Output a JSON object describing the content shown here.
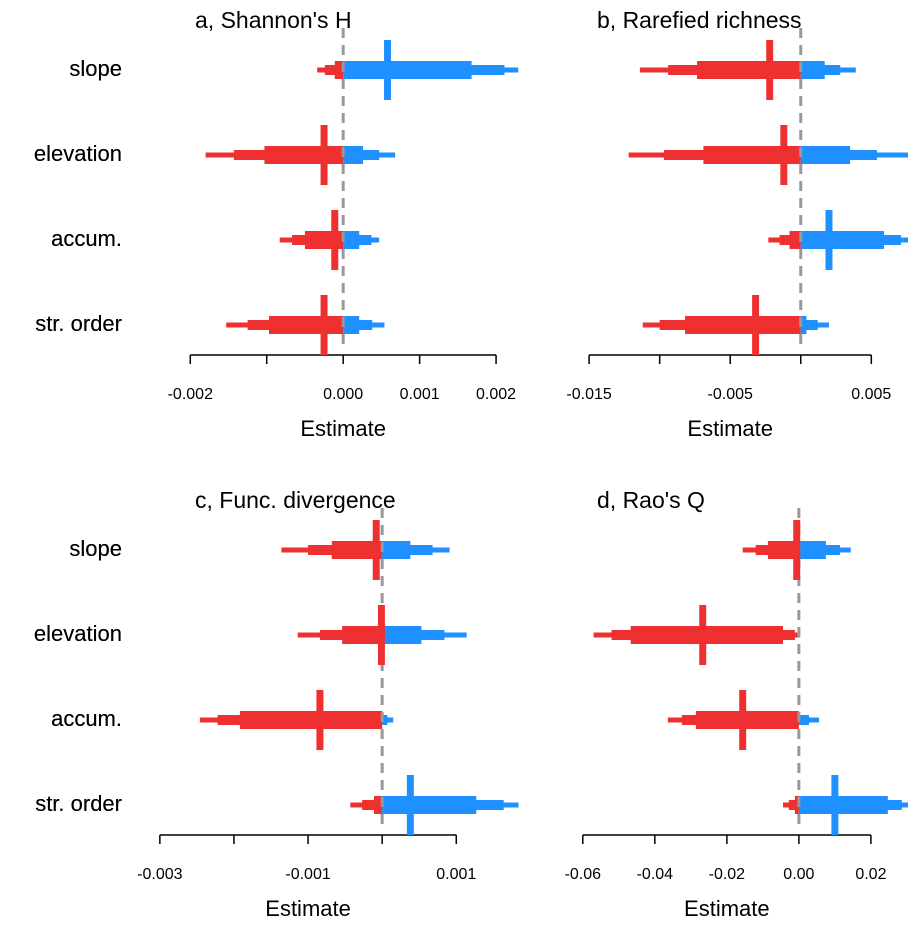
{
  "chart_data": [
    {
      "type": "interval",
      "title": "a, Shannon's H",
      "xlabel": "Estimate",
      "categories": [
        "slope",
        "elevation",
        "accum.",
        "str. order"
      ],
      "xlim": [
        -0.0022,
        0.0023
      ],
      "xticks": [
        -0.002,
        {
          "value": 0,
          "label": "0.000"
        },
        0.001,
        0.002
      ],
      "xticks_minor": [
        -0.001
      ],
      "refline": 0,
      "estimates": [
        0.00058,
        -0.00025,
        -0.00011,
        -0.00025
      ],
      "intervals": [
        {
          "lower": [
            -0.00034,
            -0.0018,
            -0.00083,
            -0.00153
          ],
          "upper": [
            0.00229,
            0.00068,
            0.00047,
            0.00054
          ]
        },
        {
          "lower": [
            -0.00024,
            -0.00143,
            -0.00067,
            -0.00125
          ],
          "upper": [
            0.00211,
            0.00047,
            0.00037,
            0.00038
          ]
        },
        {
          "lower": [
            -0.00011,
            -0.00103,
            -0.0005,
            -0.00097
          ],
          "upper": [
            0.00168,
            0.00026,
            0.00021,
            0.00021
          ]
        }
      ],
      "negative_color": "#ee3030",
      "positive_color": "#1e90ff",
      "refline_color": "#999999"
    },
    {
      "type": "interval",
      "title": "b, Rarefied richness",
      "xlabel": "Estimate",
      "categories": [
        "slope",
        "elevation",
        "accum.",
        "str. order"
      ],
      "xlim": [
        -0.016,
        0.0076
      ],
      "xticks": [
        -0.015,
        -0.005,
        0.005
      ],
      "xticks_minor": [
        -0.01,
        0
      ],
      "refline": 0,
      "estimates": [
        -0.0022,
        -0.0012,
        0.002,
        -0.0032
      ],
      "intervals": [
        {
          "lower": [
            -0.0114,
            -0.0122,
            -0.0023,
            -0.0112
          ],
          "upper": [
            0.0039,
            0.0076,
            0.0078,
            0.002
          ]
        },
        {
          "lower": [
            -0.0094,
            -0.0097,
            -0.0015,
            -0.01
          ],
          "upper": [
            0.0028,
            0.0054,
            0.0071,
            0.0012
          ]
        },
        {
          "lower": [
            -0.00735,
            -0.0069,
            -0.0008,
            -0.0082
          ],
          "upper": [
            0.0017,
            0.0035,
            0.0059,
            0.0004
          ]
        }
      ],
      "negative_color": "#ee3030",
      "positive_color": "#1e90ff",
      "refline_color": "#999999"
    },
    {
      "type": "interval",
      "title": "c, Func. divergence",
      "xlabel": "Estimate",
      "categories": [
        "slope",
        "elevation",
        "accum.",
        "str. order"
      ],
      "xlim": [
        -0.00316,
        0.00186
      ],
      "xticks": [
        -0.003,
        -0.001,
        0.001
      ],
      "xticks_minor": [
        -0.002,
        0
      ],
      "refline": 0,
      "estimates": [
        -8e-05,
        -1e-05,
        -0.00084,
        0.00038
      ],
      "intervals": [
        {
          "lower": [
            -0.00136,
            -0.00114,
            -0.00246,
            -0.00043
          ],
          "upper": [
            0.00091,
            0.00114,
            0.00015,
            0.00184
          ]
        },
        {
          "lower": [
            -0.001,
            -0.00084,
            -0.00222,
            -0.00027
          ],
          "upper": [
            0.00068,
            0.00084,
            7e-05,
            0.00164
          ]
        },
        {
          "lower": [
            -0.00068,
            -0.00054,
            -0.00192,
            -0.00011
          ],
          "upper": [
            0.00038,
            0.00053,
            0,
            0.00127
          ]
        }
      ],
      "negative_color": "#ee3030",
      "positive_color": "#1e90ff",
      "refline_color": "#999999"
    },
    {
      "type": "interval",
      "title": "d, Rao's Q",
      "xlabel": "Estimate",
      "categories": [
        "slope",
        "elevation",
        "accum.",
        "str. order"
      ],
      "xlim": [
        -0.063,
        0.0303
      ],
      "xticks": [
        -0.06,
        -0.04,
        -0.02,
        {
          "value": 0,
          "label": "0.00"
        },
        0.02
      ],
      "xticks_minor": [],
      "refline": 0,
      "estimates": [
        -0.0006,
        -0.0267,
        -0.0156,
        0.01
      ],
      "intervals": [
        {
          "lower": [
            -0.0156,
            -0.057,
            -0.0364,
            -0.0044
          ],
          "upper": [
            0.0144,
            0.0003,
            0.0056,
            0.031
          ]
        },
        {
          "lower": [
            -0.012,
            -0.052,
            -0.0325,
            -0.0028
          ],
          "upper": [
            0.0114,
            -0.0011,
            0.0028,
            0.0286
          ]
        },
        {
          "lower": [
            -0.0086,
            -0.0467,
            -0.0286,
            -0.0011
          ],
          "upper": [
            0.0075,
            -0.0044,
            0,
            0.0247
          ]
        }
      ],
      "negative_color": "#ee3030",
      "positive_color": "#1e90ff",
      "refline_color": "#999999"
    }
  ]
}
